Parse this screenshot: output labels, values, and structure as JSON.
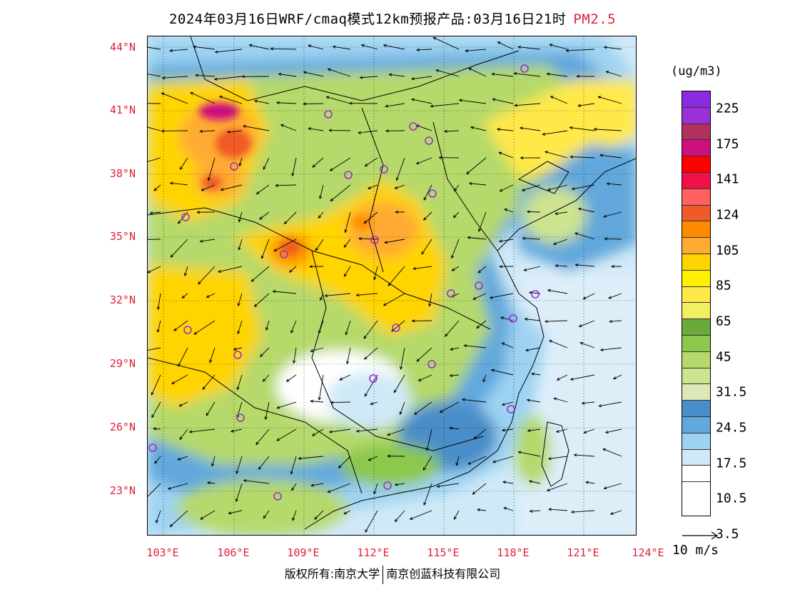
{
  "title": {
    "main": "2024年03月16日WRF/cmaq模式12km预报产品:03月16日21时",
    "variable": "PM2.5"
  },
  "map": {
    "lat_labels": [
      "44°N",
      "41°N",
      "38°N",
      "35°N",
      "32°N",
      "29°N",
      "26°N",
      "23°N"
    ],
    "lon_labels": [
      "103°E",
      "106°E",
      "109°E",
      "112°E",
      "115°E",
      "118°E",
      "121°E",
      "124°E"
    ],
    "marker_color": "#9b2fd0"
  },
  "legend": {
    "unit": "(ug/m3)",
    "colors": [
      "#8a2be2",
      "#9b30d9",
      "#b03060",
      "#cc1080",
      "#ff0000",
      "#f0104a",
      "#ff6060",
      "#f05a28",
      "#ff8c00",
      "#ffaa33",
      "#ffd400",
      "#fff000",
      "#ffe94a",
      "#f0f060",
      "#6aaa3a",
      "#8cc84b",
      "#b5d96a",
      "#cde38e",
      "#dbe9b6",
      "#4a8ec9",
      "#62a8dc",
      "#9dd3f2",
      "#cfe9f7",
      "#ffffff"
    ],
    "labels": [
      "225",
      "175",
      "141",
      "124",
      "105",
      "85",
      "65",
      "45",
      "31.5",
      "24.5",
      "17.5",
      "10.5",
      "3.5"
    ]
  },
  "wind_ref": {
    "label": "10 m/s"
  },
  "footer": {
    "left": "版权所有:南京大学",
    "right": "南京创蓝科技有限公司"
  }
}
